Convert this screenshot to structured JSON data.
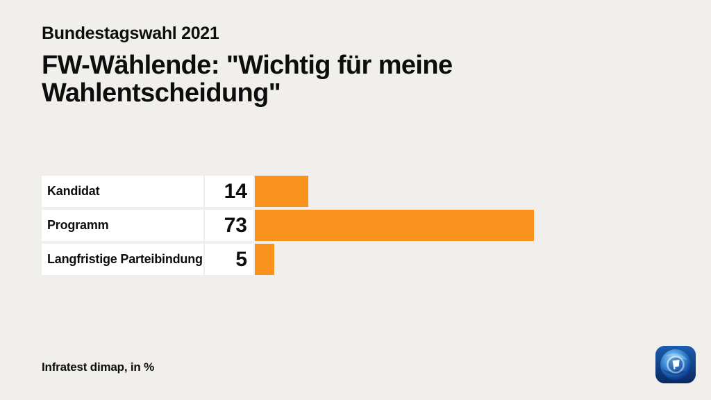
{
  "header": {
    "kicker": "Bundestagswahl 2021",
    "title": "FW-Wählende: \"Wichtig für meine Wahlentscheidung\""
  },
  "chart_data": {
    "type": "bar",
    "orientation": "horizontal",
    "title": "FW-Wählende: \"Wichtig für meine Wahlentscheidung\"",
    "subtitle": "Bundestagswahl 2021",
    "categories": [
      "Kandidat",
      "Programm",
      "Langfristige Parteibindung"
    ],
    "values": [
      14,
      73,
      5
    ],
    "unit": "%",
    "xmax": 100,
    "grid": false,
    "legend": false,
    "bar_color": "#f8921c",
    "source": "Infratest dimap, in %"
  },
  "footer": {
    "source": "Infratest dimap, in %"
  },
  "logo": {
    "name": "tagesschau-globe-logo"
  },
  "colors": {
    "background": "#f0efec",
    "cell_background": "#ffffff",
    "bar": "#f8921c",
    "text": "#0d0d0d"
  }
}
